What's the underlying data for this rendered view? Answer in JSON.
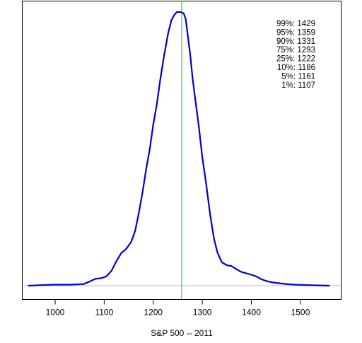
{
  "chart_data": {
    "type": "line",
    "title": "",
    "xlabel": "S&P 500 -- 2011",
    "ylabel": "",
    "xlim": [
      933,
      1583
    ],
    "ylim": [
      -0.05,
      1.0
    ],
    "x_ticks": [
      1000,
      1100,
      1200,
      1300,
      1400,
      1500
    ],
    "x_tick_labels": [
      "1000",
      "1100",
      "1200",
      "1300",
      "1400",
      "1500"
    ],
    "grid": false,
    "legend": "none",
    "colors": {
      "density": "#0000cc",
      "reference_line": "#00cc00",
      "baseline": "#bebebe",
      "axis": "#000000"
    },
    "series": [
      {
        "x": [
          945,
          970,
          1000,
          1030,
          1058,
          1070,
          1082,
          1095,
          1105,
          1115,
          1125,
          1135,
          1145,
          1155,
          1163,
          1170,
          1178,
          1186,
          1193,
          1200,
          1207,
          1214,
          1222,
          1230,
          1237,
          1243,
          1248,
          1252,
          1256,
          1262,
          1266,
          1270,
          1275,
          1280,
          1285,
          1293,
          1300,
          1308,
          1316,
          1324,
          1331,
          1340,
          1350,
          1359,
          1370,
          1380,
          1390,
          1400,
          1410,
          1420,
          1429,
          1440,
          1460,
          1480,
          1500,
          1520,
          1540,
          1560
        ],
        "y": [
          0.0,
          0.002,
          0.004,
          0.004,
          0.006,
          0.015,
          0.025,
          0.028,
          0.035,
          0.055,
          0.09,
          0.12,
          0.135,
          0.16,
          0.2,
          0.26,
          0.34,
          0.43,
          0.5,
          0.59,
          0.66,
          0.75,
          0.84,
          0.92,
          0.97,
          0.99,
          1.0,
          1.0,
          1.0,
          0.995,
          0.975,
          0.92,
          0.85,
          0.76,
          0.69,
          0.58,
          0.47,
          0.37,
          0.26,
          0.17,
          0.12,
          0.085,
          0.075,
          0.072,
          0.06,
          0.05,
          0.045,
          0.04,
          0.034,
          0.024,
          0.018,
          0.013,
          0.008,
          0.005,
          0.003,
          0.002,
          0.001,
          0.0
        ]
      }
    ],
    "reference_line_x": 1258,
    "quantiles": [
      {
        "label": "99%: 1429"
      },
      {
        "label": "95%: 1359"
      },
      {
        "label": "90%: 1331"
      },
      {
        "label": "75%: 1293"
      },
      {
        "label": "25%: 1222"
      },
      {
        "label": "10%: 1186"
      },
      {
        "label": "5%: 1161"
      },
      {
        "label": "1%: 1107"
      }
    ]
  }
}
